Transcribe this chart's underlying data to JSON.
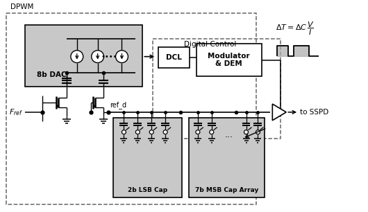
{
  "bg_color": "#ffffff",
  "gray_fill": "#c8c8c8",
  "white_fill": "#ffffff",
  "dash_color": "#666666",
  "black": "#000000",
  "dpwm_label": "DPWM",
  "digital_control_label": "Digital Control",
  "fref_label": "$F_{ref}$",
  "refd_label": "ref_d",
  "to_sspd_label": "to SSPD",
  "dac_label": "8b DAC",
  "dcl_label": "DCL",
  "mod_label": "Modulator\n& DEM",
  "lsb_label": "2b LSB Cap",
  "msb_label": "7b MSB Cap Array",
  "dots": "...",
  "dots4": "••••"
}
